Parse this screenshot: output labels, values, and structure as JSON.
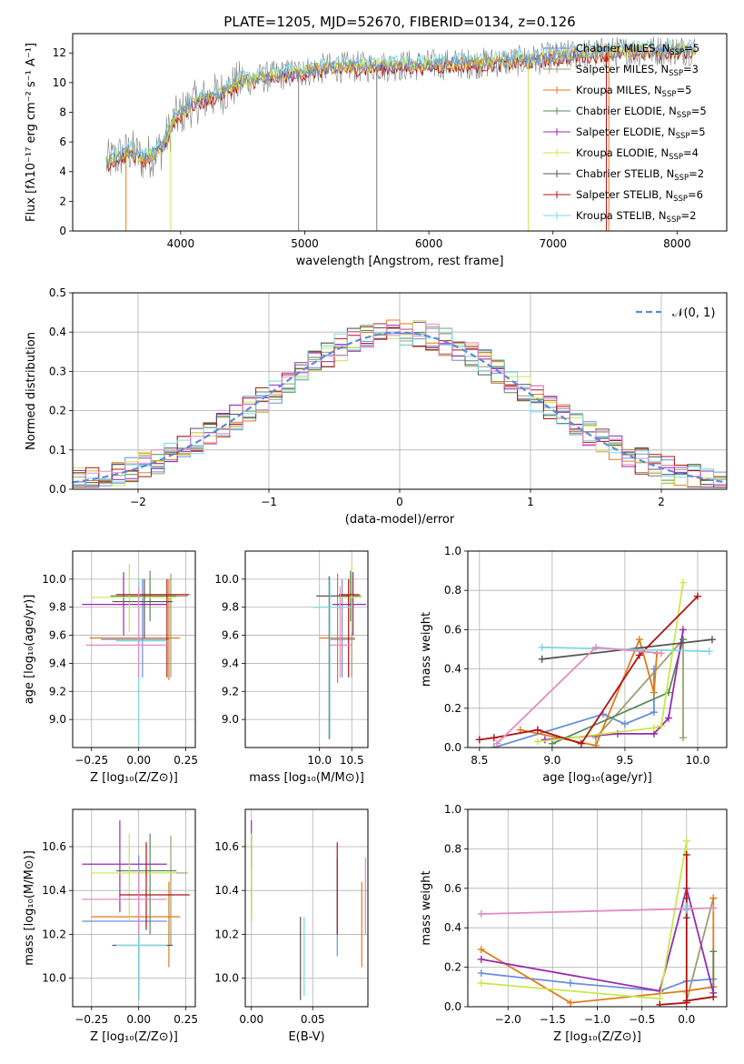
{
  "figure": {
    "title": "PLATE=1205, MJD=52670, FIBERID=0134, z=0.126"
  },
  "colors": {
    "Chabrier MILES": "#6a8fdc",
    "Salpeter MILES": "#9aa06a",
    "Kroupa MILES": "#e07b1c",
    "Chabrier ELODIE": "#5a8a5a",
    "Salpeter ELODIE": "#9a2ab0",
    "Kroupa ELODIE": "#c8e84c",
    "Chabrier STELIB": "#555555",
    "Salpeter STELIB": "#b01414",
    "Kroupa STELIB": "#7ad8e0",
    "data": "#808080",
    "pink": "#e58ac0",
    "gaussian": "#5b8ad8"
  },
  "chart_data": [
    {
      "id": "spectrum",
      "type": "line",
      "xlabel": "wavelength [Angstrom, rest frame]",
      "ylabel": "Flux [fλ10⁻¹⁷ erg cm⁻² s⁻¹ A⁻¹]",
      "xlim": [
        3130,
        8400
      ],
      "ylim": [
        0,
        13.3
      ],
      "xticks": [
        "4000",
        "5000",
        "6000",
        "7000",
        "8000"
      ],
      "yticks": [
        "0",
        "2",
        "4",
        "6",
        "8",
        "10",
        "12"
      ],
      "legend": "right",
      "series_labels": [
        {
          "key": "Chabrier MILES",
          "base": "Chabrier MILES, N",
          "sub": "SSP",
          "tail": "=5"
        },
        {
          "key": "Salpeter MILES",
          "base": "Salpeter MILES, N",
          "sub": "SSP",
          "tail": "=3"
        },
        {
          "key": "Kroupa MILES",
          "base": "Kroupa MILES, N",
          "sub": "SSP",
          "tail": "=5"
        },
        {
          "key": "Chabrier ELODIE",
          "base": "Chabrier ELODIE, N",
          "sub": "SSP",
          "tail": "=5"
        },
        {
          "key": "Salpeter ELODIE",
          "base": "Salpeter ELODIE, N",
          "sub": "SSP",
          "tail": "=5"
        },
        {
          "key": "Kroupa ELODIE",
          "base": "Kroupa ELODIE, N",
          "sub": "SSP",
          "tail": "=4"
        },
        {
          "key": "Chabrier STELIB",
          "base": "Chabrier STELIB, N",
          "sub": "SSP",
          "tail": "=2"
        },
        {
          "key": "Salpeter STELIB",
          "base": "Salpeter STELIB, N",
          "sub": "SSP",
          "tail": "=6"
        },
        {
          "key": "Kroupa STELIB",
          "base": "Kroupa STELIB, N",
          "sub": "SSP",
          "tail": "=2"
        }
      ],
      "continuum_anchors": [
        [
          3400,
          4.6
        ],
        [
          3600,
          5.4
        ],
        [
          3700,
          4.8
        ],
        [
          3850,
          5.6
        ],
        [
          3950,
          7.5
        ],
        [
          4100,
          8.6
        ],
        [
          4300,
          9.2
        ],
        [
          4500,
          10.1
        ],
        [
          4800,
          10.5
        ],
        [
          5200,
          11.0
        ],
        [
          5600,
          11.1
        ],
        [
          6000,
          11.2
        ],
        [
          6400,
          11.3
        ],
        [
          6800,
          11.5
        ],
        [
          7200,
          11.9
        ],
        [
          7600,
          12.1
        ],
        [
          8000,
          12.2
        ],
        [
          8150,
          12.2
        ]
      ]
    },
    {
      "id": "residuals",
      "type": "bar",
      "xlabel": "(data-model)/error",
      "ylabel": "Normed distribution",
      "xlim": [
        -2.5,
        2.5
      ],
      "ylim": [
        0,
        0.5
      ],
      "xticks": [
        "−2",
        "−1",
        "0",
        "1",
        "2"
      ],
      "yticks": [
        "0.0",
        "0.1",
        "0.2",
        "0.3",
        "0.4",
        "0.5"
      ],
      "legend": "top-right",
      "legend_label": "𝒩(0, 1)",
      "bins": 50
    },
    {
      "id": "age_vs_z",
      "type": "scatter",
      "xlabel": "Z [log₁₀(Z/Z⊙)]",
      "ylabel": "age  [log₁₀(age/yr)]",
      "xlim": [
        -0.35,
        0.3
      ],
      "ylim": [
        8.8,
        10.2
      ],
      "xticks": [
        "−0.25",
        "0.00",
        "0.25"
      ],
      "yticks": [
        "9.0",
        "9.2",
        "9.4",
        "9.6",
        "9.8",
        "10.0"
      ],
      "points": [
        {
          "c": "Chabrier MILES",
          "x": 0.02,
          "y": 9.57,
          "ex": [
            -0.2,
            0.16
          ],
          "ey": [
            9.3,
            10.0
          ]
        },
        {
          "c": "Salpeter MILES",
          "x": 0.17,
          "y": 9.88,
          "ex": [
            0.0,
            0.26
          ],
          "ey": [
            9.3,
            10.04
          ]
        },
        {
          "c": "Kroupa MILES",
          "x": 0.16,
          "y": 9.58,
          "ex": [
            -0.26,
            0.22
          ],
          "ey": [
            9.28,
            10.0
          ]
        },
        {
          "c": "Chabrier ELODIE",
          "x": 0.06,
          "y": 9.88,
          "ex": [
            -0.15,
            0.2
          ],
          "ey": [
            9.7,
            10.06
          ]
        },
        {
          "c": "Salpeter ELODIE",
          "x": -0.08,
          "y": 9.82,
          "ex": [
            -0.3,
            0.15
          ],
          "ey": [
            9.6,
            10.05
          ]
        },
        {
          "c": "Kroupa ELODIE",
          "x": -0.05,
          "y": 9.87,
          "ex": [
            -0.25,
            0.2
          ],
          "ey": [
            9.62,
            10.11
          ]
        },
        {
          "c": "Chabrier STELIB",
          "x": 0.03,
          "y": 9.84,
          "ex": [
            -0.14,
            0.18
          ],
          "ey": [
            9.58,
            10.0
          ]
        },
        {
          "c": "Salpeter STELIB",
          "x": 0.15,
          "y": 9.89,
          "ex": [
            -0.12,
            0.27
          ],
          "ey": [
            9.3,
            10.0
          ]
        },
        {
          "c": "Kroupa STELIB",
          "x": 0.0,
          "y": 9.56,
          "ex": [
            -0.12,
            0.15
          ],
          "ey": [
            8.82,
            10.0
          ]
        },
        {
          "c": "pink",
          "x": 0.0,
          "y": 9.53,
          "ex": [
            -0.28,
            0.15
          ],
          "ey": [
            9.3,
            9.95
          ]
        }
      ]
    },
    {
      "id": "age_vs_mass",
      "type": "scatter",
      "xlabel": "mass [log₁₀(M/M⊙)]",
      "ylabel": "",
      "xlim": [
        8.85,
        10.75
      ],
      "ylim": [
        8.8,
        10.2
      ],
      "xticks": [
        "10.0",
        "10.5"
      ],
      "yticks": [
        "9.0",
        "9.2",
        "9.4",
        "9.6",
        "9.8",
        "10.0"
      ],
      "points": [
        {
          "c": "Chabrier MILES",
          "x": 10.35,
          "y": 9.57,
          "ex": [
            10.15,
            10.55
          ],
          "ey": [
            9.3,
            10.0
          ]
        },
        {
          "c": "Salpeter MILES",
          "x": 10.5,
          "y": 9.88,
          "ex": [
            10.3,
            10.65
          ],
          "ey": [
            9.3,
            10.04
          ]
        },
        {
          "c": "Kroupa MILES",
          "x": 10.28,
          "y": 9.58,
          "ex": [
            10.0,
            10.55
          ],
          "ey": [
            9.26,
            10.04
          ]
        },
        {
          "c": "Chabrier ELODIE",
          "x": 10.48,
          "y": 9.88,
          "ex": [
            10.3,
            10.62
          ],
          "ey": [
            9.7,
            10.06
          ]
        },
        {
          "c": "Salpeter ELODIE",
          "x": 10.52,
          "y": 9.82,
          "ex": [
            10.2,
            10.72
          ],
          "ey": [
            9.6,
            10.05
          ]
        },
        {
          "c": "Kroupa ELODIE",
          "x": 10.5,
          "y": 9.87,
          "ex": [
            10.3,
            10.65
          ],
          "ey": [
            9.62,
            10.11
          ]
        },
        {
          "c": "Chabrier STELIB",
          "x": 10.15,
          "y": 9.88,
          "ex": [
            9.95,
            10.45
          ],
          "ey": [
            8.86,
            10.02
          ]
        },
        {
          "c": "Salpeter STELIB",
          "x": 10.45,
          "y": 9.89,
          "ex": [
            10.3,
            10.62
          ],
          "ey": [
            9.3,
            10.0
          ]
        },
        {
          "c": "Kroupa STELIB",
          "x": 10.16,
          "y": 9.8,
          "ex": [
            9.9,
            10.5
          ],
          "ey": [
            8.86,
            10.0
          ]
        },
        {
          "c": "pink",
          "x": 10.32,
          "y": 9.53,
          "ex": [
            10.15,
            10.5
          ],
          "ey": [
            9.3,
            9.95
          ]
        }
      ]
    },
    {
      "id": "weight_vs_age",
      "type": "line",
      "xlabel": "age  [log₁₀(age/yr)]",
      "ylabel": "mass weight",
      "xlim": [
        8.42,
        10.2
      ],
      "ylim": [
        0,
        1.0
      ],
      "xticks": [
        "8.5",
        "9.0",
        "9.5",
        "10.0"
      ],
      "yticks": [
        "0.0",
        "0.2",
        "0.4",
        "0.6",
        "0.8",
        "1.0"
      ],
      "series": [
        {
          "c": "Chabrier MILES",
          "x": [
            8.6,
            9.35,
            9.5,
            9.7,
            9.7
          ],
          "y": [
            0.0,
            0.17,
            0.12,
            0.18,
            0.4
          ]
        },
        {
          "c": "Salpeter MILES",
          "x": [
            9.3,
            9.9,
            9.9
          ],
          "y": [
            0.05,
            0.55,
            0.05
          ]
        },
        {
          "c": "Kroupa MILES",
          "x": [
            8.78,
            9.3,
            9.6,
            9.7,
            9.72
          ],
          "y": [
            0.09,
            0.01,
            0.55,
            0.28,
            0.48
          ]
        },
        {
          "c": "Chabrier ELODIE",
          "x": [
            9.0,
            9.8,
            9.9
          ],
          "y": [
            0.02,
            0.28,
            0.55
          ]
        },
        {
          "c": "Salpeter ELODIE",
          "x": [
            8.95,
            9.45,
            9.7,
            9.8,
            9.9
          ],
          "y": [
            0.04,
            0.07,
            0.07,
            0.15,
            0.6
          ]
        },
        {
          "c": "Kroupa ELODIE",
          "x": [
            8.9,
            9.7,
            9.75,
            9.9
          ],
          "y": [
            0.03,
            0.1,
            0.11,
            0.84
          ]
        },
        {
          "c": "Chabrier STELIB",
          "x": [
            8.93,
            10.1
          ],
          "y": [
            0.45,
            0.55
          ]
        },
        {
          "c": "Salpeter STELIB",
          "x": [
            8.5,
            8.6,
            8.9,
            9.2,
            9.6,
            10.0
          ],
          "y": [
            0.04,
            0.05,
            0.09,
            0.02,
            0.47,
            0.77
          ]
        },
        {
          "c": "Kroupa STELIB",
          "x": [
            8.93,
            10.08
          ],
          "y": [
            0.51,
            0.49
          ]
        },
        {
          "c": "pink",
          "x": [
            8.62,
            9.3,
            9.75
          ],
          "y": [
            0.02,
            0.51,
            0.48
          ]
        }
      ]
    },
    {
      "id": "mass_vs_z",
      "type": "scatter",
      "xlabel": "Z [log₁₀(Z/Z⊙)]",
      "ylabel": "mass [log₁₀(M/M⊙)]",
      "xlim": [
        -0.35,
        0.3
      ],
      "ylim": [
        9.87,
        10.77
      ],
      "xticks": [
        "−0.25",
        "0.00",
        "0.25"
      ],
      "yticks": [
        "10.0",
        "10.2",
        "10.4",
        "10.6"
      ],
      "points": [
        {
          "c": "Chabrier MILES",
          "x": 0.0,
          "y": 10.26,
          "ex": [
            -0.3,
            0.15
          ],
          "ey": [
            9.95,
            10.56
          ]
        },
        {
          "c": "Salpeter MILES",
          "x": 0.17,
          "y": 10.48,
          "ex": [
            0.0,
            0.26
          ],
          "ey": [
            10.15,
            10.65
          ]
        },
        {
          "c": "Kroupa MILES",
          "x": 0.16,
          "y": 10.28,
          "ex": [
            -0.25,
            0.22
          ],
          "ey": [
            10.05,
            10.44
          ]
        },
        {
          "c": "Chabrier ELODIE",
          "x": 0.06,
          "y": 10.49,
          "ex": [
            -0.12,
            0.2
          ],
          "ey": [
            10.2,
            10.66
          ]
        },
        {
          "c": "Salpeter ELODIE",
          "x": -0.1,
          "y": 10.52,
          "ex": [
            -0.3,
            0.15
          ],
          "ey": [
            10.3,
            10.72
          ]
        },
        {
          "c": "Kroupa ELODIE",
          "x": -0.05,
          "y": 10.48,
          "ex": [
            -0.25,
            0.2
          ],
          "ey": [
            10.26,
            10.66
          ]
        },
        {
          "c": "Chabrier STELIB",
          "x": 0.0,
          "y": 10.15,
          "ex": [
            -0.14,
            0.18
          ],
          "ey": [
            9.9,
            10.27
          ]
        },
        {
          "c": "Salpeter STELIB",
          "x": 0.04,
          "y": 10.38,
          "ex": [
            -0.1,
            0.27
          ],
          "ey": [
            10.22,
            10.62
          ]
        },
        {
          "c": "Kroupa STELIB",
          "x": 0.0,
          "y": 10.15,
          "ex": [
            -0.12,
            0.15
          ],
          "ey": [
            9.9,
            10.27
          ]
        },
        {
          "c": "pink",
          "x": 0.0,
          "y": 10.36,
          "ex": [
            -0.3,
            0.15
          ],
          "ey": [
            10.2,
            10.5
          ]
        }
      ]
    },
    {
      "id": "mass_vs_ebv",
      "type": "scatter",
      "xlabel": "E(B-V)",
      "ylabel": "",
      "xlim": [
        -0.005,
        0.095
      ],
      "ylim": [
        9.87,
        10.77
      ],
      "xticks": [
        "0.00",
        "0.05"
      ],
      "yticks": [
        "10.0",
        "10.2",
        "10.4",
        "10.6"
      ],
      "points": [
        {
          "c": "Chabrier MILES",
          "x": 0.07,
          "y": 10.26,
          "ey": [
            10.1,
            10.55
          ]
        },
        {
          "c": "Salpeter MILES",
          "x": 0.0,
          "y": 10.48,
          "ey": [
            10.26,
            10.65
          ]
        },
        {
          "c": "Kroupa MILES",
          "x": 0.09,
          "y": 10.28,
          "ey": [
            10.05,
            10.44
          ]
        },
        {
          "c": "Chabrier ELODIE",
          "x": 0.0,
          "y": 10.49,
          "ey": [
            10.3,
            10.64
          ]
        },
        {
          "c": "Salpeter ELODIE",
          "x": 0.0,
          "y": 10.6,
          "ey": [
            10.5,
            10.72
          ]
        },
        {
          "c": "Kroupa ELODIE",
          "x": 0.0,
          "y": 10.45,
          "ey": [
            10.26,
            10.66
          ]
        },
        {
          "c": "Chabrier STELIB",
          "x": 0.04,
          "y": 10.15,
          "ey": [
            9.9,
            10.28
          ]
        },
        {
          "c": "Salpeter STELIB",
          "x": 0.07,
          "y": 10.38,
          "ey": [
            10.2,
            10.62
          ]
        },
        {
          "c": "Kroupa STELIB",
          "x": 0.043,
          "y": 10.15,
          "ey": [
            9.92,
            10.28
          ]
        },
        {
          "c": "pink",
          "x": 0.093,
          "y": 10.36,
          "ey": [
            10.2,
            10.55
          ]
        }
      ]
    },
    {
      "id": "weight_vs_z",
      "type": "line",
      "xlabel": "Z [log₁₀(Z/Z⊙)]",
      "ylabel": "mass weight",
      "xlim": [
        -2.45,
        0.45
      ],
      "ylim": [
        0,
        1.0
      ],
      "xticks": [
        "−2.0",
        "−1.5",
        "−1.0",
        "−0.5",
        "0.0"
      ],
      "yticks": [
        "0.0",
        "0.2",
        "0.4",
        "0.6",
        "0.8",
        "1.0"
      ],
      "series": [
        {
          "c": "Chabrier MILES",
          "x": [
            -2.3,
            -1.3,
            -0.3,
            0.0,
            0.3
          ],
          "y": [
            0.17,
            0.12,
            0.08,
            0.13,
            0.14
          ]
        },
        {
          "c": "Salpeter MILES",
          "x": [
            0.0,
            0.3
          ],
          "y": [
            0.03,
            0.55
          ]
        },
        {
          "c": "Kroupa MILES",
          "x": [
            -2.3,
            -1.3,
            0.0,
            0.3,
            0.3
          ],
          "y": [
            0.29,
            0.02,
            0.08,
            0.1,
            0.55
          ]
        },
        {
          "c": "Chabrier ELODIE",
          "x": [
            0.0,
            0.3,
            0.3
          ],
          "y": [
            0.03,
            0.05,
            0.28
          ]
        },
        {
          "c": "Salpeter ELODIE",
          "x": [
            -2.3,
            -0.3,
            0.0,
            0.3
          ],
          "y": [
            0.24,
            0.08,
            0.6,
            0.07
          ]
        },
        {
          "c": "Kroupa ELODIE",
          "x": [
            -2.3,
            -0.3,
            0.0,
            0.0
          ],
          "y": [
            0.12,
            0.04,
            0.84,
            0.07
          ]
        },
        {
          "c": "Chabrier STELIB",
          "x": [
            0.0,
            0.0
          ],
          "y": [
            0.45,
            0.55
          ]
        },
        {
          "c": "Salpeter STELIB",
          "x": [
            -0.3,
            0.0,
            0.0,
            0.0,
            0.3
          ],
          "y": [
            0.01,
            0.02,
            0.77,
            0.03,
            0.05
          ]
        },
        {
          "c": "Kroupa STELIB",
          "x": [
            0.0,
            0.0
          ],
          "y": [
            0.49,
            0.51
          ]
        },
        {
          "c": "pink",
          "x": [
            -2.3,
            0.3
          ],
          "y": [
            0.47,
            0.5
          ]
        }
      ]
    }
  ]
}
